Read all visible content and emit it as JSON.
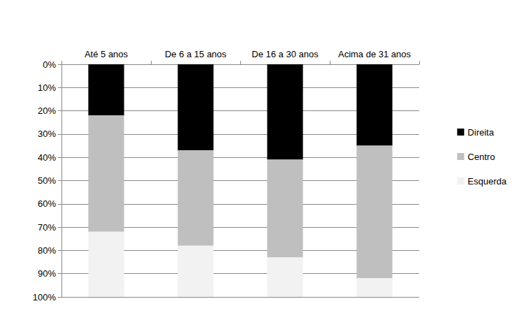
{
  "chart_data": {
    "type": "bar",
    "stacked": true,
    "grid": true,
    "legend": "right",
    "categories": [
      "Até 5 anos",
      "De 6 a 15 anos",
      "De 16 a 30 anos",
      "Acima de 31 anos"
    ],
    "series": [
      {
        "name": "Direita",
        "color": "#000000",
        "values": [
          22,
          37,
          41,
          35
        ]
      },
      {
        "name": "Centro",
        "color": "#bfbfbf",
        "values": [
          50,
          41,
          42,
          57
        ]
      },
      {
        "name": "Esquerda",
        "color": "#f2f2f2",
        "values": [
          28,
          22,
          17,
          8
        ]
      }
    ],
    "ylim": [
      0,
      100
    ],
    "yticks": [
      {
        "value": 0,
        "label": "0%"
      },
      {
        "value": 10,
        "label": "10%"
      },
      {
        "value": 20,
        "label": "20%"
      },
      {
        "value": 30,
        "label": "30%"
      },
      {
        "value": 40,
        "label": "40%"
      },
      {
        "value": 50,
        "label": "50%"
      },
      {
        "value": 60,
        "label": "60%"
      },
      {
        "value": 70,
        "label": "70%"
      },
      {
        "value": 80,
        "label": "80%"
      },
      {
        "value": 90,
        "label": "90%"
      },
      {
        "value": 100,
        "label": "100%"
      }
    ]
  }
}
